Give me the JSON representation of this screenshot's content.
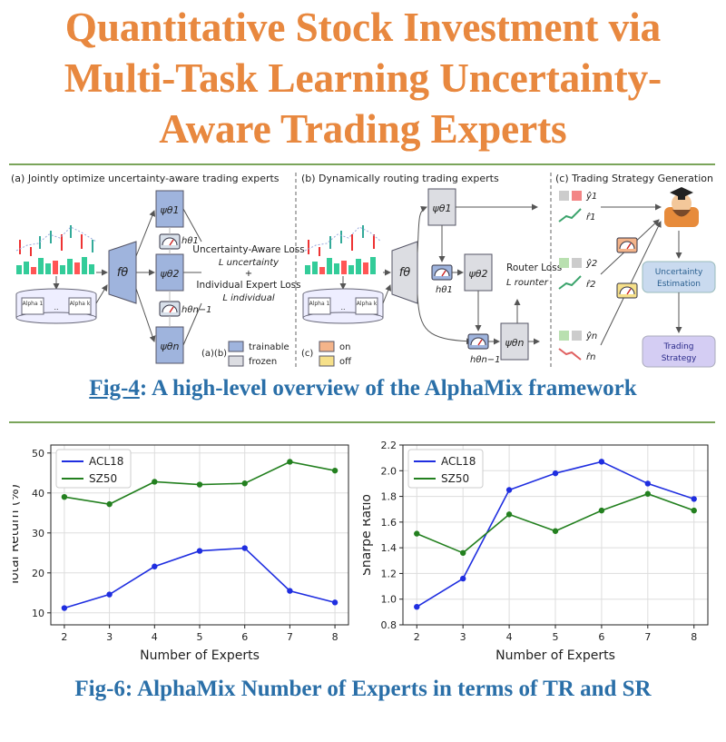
{
  "title": "Quantitative Stock Investment via Multi-Task Learning Uncertainty-Aware Trading Experts",
  "title_lines": [
    "Quantitative Stock Investment via",
    "Multi-Task Learning Uncertainty-",
    "Aware Trading Experts"
  ],
  "colors": {
    "title": "#e8883f",
    "caption": "#2a6fa8",
    "rule": "#7aa55a",
    "acl18": "#1f2ee0",
    "sz50": "#23801f"
  },
  "fig4": {
    "caption_link": "Fig-4",
    "caption_rest": ": A high-level overview of the AlphaMix framework",
    "panel_a": "(a) Jointly optimize uncertainty-aware trading experts",
    "panel_b": "(b) Dynamically routing trading experts",
    "panel_c": "(c) Trading Strategy Generation",
    "f_theta": "fθ",
    "psi1": "ψθ1",
    "psi2": "ψθ2",
    "psin": "ψθn",
    "h1": "hθ1",
    "hn1": "hθn−1",
    "h2": "hθ2",
    "loss_ua": "Uncertainty-Aware Loss",
    "loss_ua_sym": "L uncertainty",
    "plus": "+",
    "loss_ie": "Individual Expert Loss",
    "loss_ie_sym": "L individual",
    "router_loss": "Router Loss",
    "router_sym": "L rounter",
    "alpha1": "Alpha 1",
    "alpha_dots": "..",
    "alphak": "Alpha k",
    "legend_ab": "(a)(b)",
    "trainable": "trainable",
    "frozen": "frozen",
    "legend_c": "(c)",
    "on": "on",
    "off": "off",
    "y1": "ŷ1",
    "r1": "r̂1",
    "y2": "ŷ2",
    "r2": "r̂2",
    "yn": "ŷn",
    "rn": "r̂n",
    "uncertainty_estimation": [
      "Uncertainty",
      "Estimation"
    ],
    "trading_strategy": [
      "Trading",
      "Strategy"
    ]
  },
  "fig6": {
    "caption": "Fig-6: AlphaMix Number of Experts in terms of TR and SR"
  },
  "chart_data": [
    {
      "type": "line",
      "x": [
        2,
        3,
        4,
        5,
        6,
        7,
        8
      ],
      "xlabel": "Number of Experts",
      "ylabel": "Total Return (%)",
      "ylim": [
        7,
        52
      ],
      "yticks": [
        10,
        20,
        30,
        40,
        50
      ],
      "grid": true,
      "legend": "top-left",
      "series": [
        {
          "name": "ACL18",
          "color": "#1f2ee0",
          "values": [
            11.2,
            14.6,
            21.6,
            25.5,
            26.2,
            15.5,
            12.6
          ]
        },
        {
          "name": "SZ50",
          "color": "#23801f",
          "values": [
            39.0,
            37.2,
            42.8,
            42.1,
            42.4,
            47.8,
            45.6
          ]
        }
      ]
    },
    {
      "type": "line",
      "x": [
        2,
        3,
        4,
        5,
        6,
        7,
        8
      ],
      "xlabel": "Number of Experts",
      "ylabel": "Sharpe Ratio",
      "ylim": [
        0.8,
        2.2
      ],
      "yticks": [
        0.8,
        1.0,
        1.2,
        1.4,
        1.6,
        1.8,
        2.0,
        2.2
      ],
      "grid": true,
      "legend": "top-left",
      "series": [
        {
          "name": "ACL18",
          "color": "#1f2ee0",
          "values": [
            0.94,
            1.16,
            1.85,
            1.98,
            2.07,
            1.9,
            1.78
          ]
        },
        {
          "name": "SZ50",
          "color": "#23801f",
          "values": [
            1.51,
            1.36,
            1.66,
            1.53,
            1.69,
            1.82,
            1.69
          ]
        }
      ]
    }
  ]
}
